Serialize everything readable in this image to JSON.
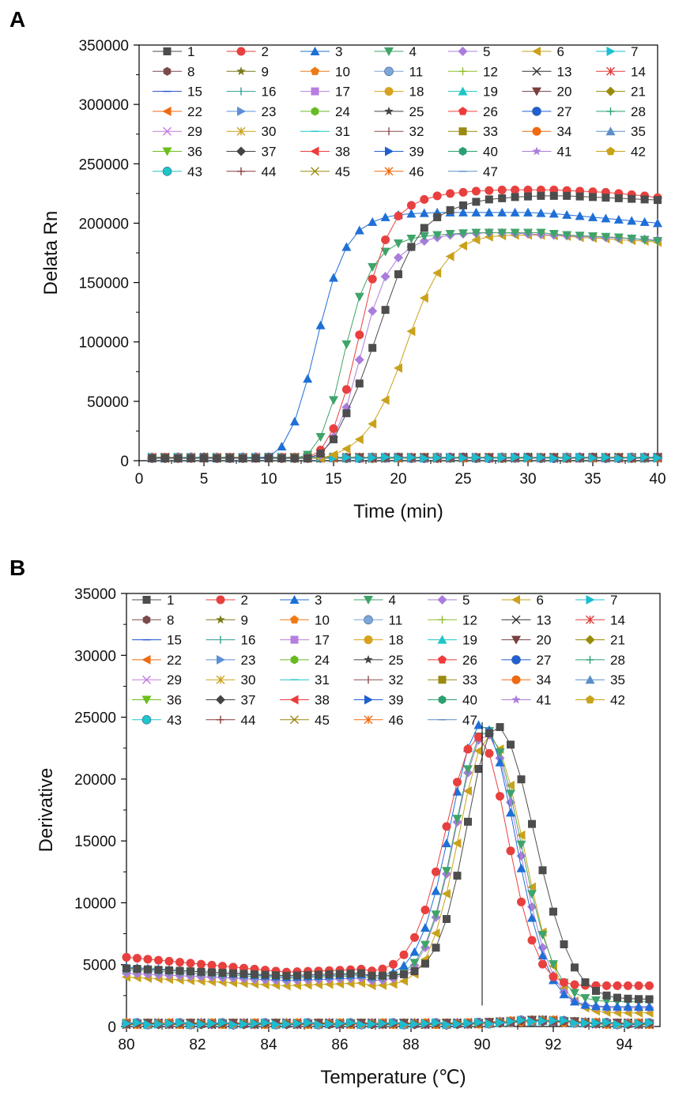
{
  "figure": {
    "panel_a_label": "A",
    "panel_b_label": "B"
  },
  "legend_labels": [
    "1",
    "2",
    "3",
    "4",
    "5",
    "6",
    "7",
    "8",
    "9",
    "10",
    "11",
    "12",
    "13",
    "14",
    "15",
    "16",
    "17",
    "18",
    "19",
    "20",
    "21",
    "22",
    "23",
    "24",
    "25",
    "26",
    "27",
    "28",
    "29",
    "30",
    "31",
    "32",
    "33",
    "34",
    "35",
    "36",
    "37",
    "38",
    "39",
    "40",
    "41",
    "42",
    "43",
    "44",
    "45",
    "46",
    "47"
  ],
  "legend_markers": [
    {
      "shape": "square",
      "color": "#4d4d4d"
    },
    {
      "shape": "circle",
      "color": "#e8403f"
    },
    {
      "shape": "triangle-up",
      "color": "#1f6fd6"
    },
    {
      "shape": "triangle-down",
      "color": "#3fa46a"
    },
    {
      "shape": "diamond",
      "color": "#a97ddb"
    },
    {
      "shape": "triangle-left",
      "color": "#c9a21b"
    },
    {
      "shape": "triangle-right",
      "color": "#1dbdd0"
    },
    {
      "shape": "hexagon",
      "color": "#7b4a4a"
    },
    {
      "shape": "star",
      "color": "#7a7a1c"
    },
    {
      "shape": "pentagon",
      "color": "#f07b16"
    },
    {
      "shape": "sphere",
      "color": "#7ea6d6"
    },
    {
      "shape": "plus",
      "color": "#8fbf2f"
    },
    {
      "shape": "x",
      "color": "#333333"
    },
    {
      "shape": "asterisk",
      "color": "#e23a3a"
    },
    {
      "shape": "dash",
      "color": "#1f4fd0"
    },
    {
      "shape": "vbar",
      "color": "#2aa090"
    },
    {
      "shape": "square",
      "color": "#b77ee0"
    },
    {
      "shape": "circle",
      "color": "#d6a21e"
    },
    {
      "shape": "triangle-up",
      "color": "#1ec6c6"
    },
    {
      "shape": "triangle-down",
      "color": "#7a4040"
    },
    {
      "shape": "diamond",
      "color": "#9a8a0a"
    },
    {
      "shape": "triangle-left",
      "color": "#f06a10"
    },
    {
      "shape": "triangle-right",
      "color": "#5b8fd6"
    },
    {
      "shape": "hexagon",
      "color": "#66bb22"
    },
    {
      "shape": "star",
      "color": "#444444"
    },
    {
      "shape": "pentagon",
      "color": "#ee3b3b"
    },
    {
      "shape": "sphere",
      "color": "#1f5fd0"
    },
    {
      "shape": "plus",
      "color": "#2aa070"
    },
    {
      "shape": "x",
      "color": "#c27ae0"
    },
    {
      "shape": "asterisk",
      "color": "#c9a21b"
    },
    {
      "shape": "dash",
      "color": "#1ec6c6"
    },
    {
      "shape": "vbar",
      "color": "#8a4a4a"
    },
    {
      "shape": "square",
      "color": "#9a8a10"
    },
    {
      "shape": "circle",
      "color": "#f06a10"
    },
    {
      "shape": "triangle-up",
      "color": "#5b8fc6"
    },
    {
      "shape": "triangle-down",
      "color": "#6abf1a"
    },
    {
      "shape": "diamond",
      "color": "#444444"
    },
    {
      "shape": "triangle-left",
      "color": "#ee3b3b"
    },
    {
      "shape": "triangle-right",
      "color": "#1f5fd0"
    },
    {
      "shape": "hexagon",
      "color": "#2aa070"
    },
    {
      "shape": "star",
      "color": "#a97ddb"
    },
    {
      "shape": "pentagon",
      "color": "#c9a21b"
    },
    {
      "shape": "sphere",
      "color": "#1ec6c6"
    },
    {
      "shape": "plus",
      "color": "#8a3a3a"
    },
    {
      "shape": "x",
      "color": "#9a8a10"
    },
    {
      "shape": "asterisk",
      "color": "#f06a10"
    },
    {
      "shape": "dash",
      "color": "#5b8fc6"
    }
  ],
  "chart_data": [
    {
      "type": "line",
      "panel": "A",
      "title": "",
      "xlabel": "Time (min)",
      "ylabel": "Delata Rn",
      "xlim": [
        0,
        40
      ],
      "ylim": [
        0,
        350000
      ],
      "xticks": [
        0,
        5,
        10,
        15,
        20,
        25,
        30,
        35,
        40
      ],
      "yticks": [
        0,
        50000,
        100000,
        150000,
        200000,
        250000,
        300000,
        350000
      ],
      "x": [
        1,
        2,
        3,
        4,
        5,
        6,
        7,
        8,
        9,
        10,
        11,
        12,
        13,
        14,
        15,
        16,
        17,
        18,
        19,
        20,
        21,
        22,
        23,
        24,
        25,
        26,
        27,
        28,
        29,
        30,
        31,
        32,
        33,
        34,
        35,
        36,
        37,
        38,
        39,
        40
      ],
      "series": [
        {
          "name": "1",
          "values": [
            2000,
            2000,
            2000,
            2000,
            2000,
            2000,
            2000,
            2000,
            2000,
            2000,
            2000,
            2000,
            2000,
            6000,
            18000,
            40000,
            65000,
            95000,
            127000,
            157000,
            180000,
            196000,
            205000,
            211000,
            215000,
            218000,
            220000,
            221000,
            222000,
            222500,
            223000,
            223000,
            223000,
            222500,
            222000,
            221500,
            221000,
            220500,
            220000,
            219500
          ]
        },
        {
          "name": "2",
          "values": [
            2000,
            2000,
            2000,
            2000,
            2000,
            2000,
            2000,
            2000,
            2000,
            2000,
            2000,
            2000,
            2000,
            9000,
            27000,
            60000,
            106000,
            153000,
            186000,
            206000,
            215000,
            220000,
            223000,
            225000,
            226000,
            227000,
            227500,
            228000,
            228000,
            228000,
            228000,
            228000,
            227500,
            227000,
            226500,
            226000,
            225000,
            224000,
            223000,
            221500
          ]
        },
        {
          "name": "3",
          "values": [
            2000,
            2000,
            2000,
            2000,
            2000,
            2000,
            2000,
            2000,
            2000,
            3000,
            12000,
            33000,
            69000,
            114000,
            154000,
            180000,
            194000,
            201000,
            205000,
            207000,
            208000,
            208500,
            209000,
            209000,
            209000,
            209000,
            209000,
            209000,
            209000,
            209000,
            208500,
            208000,
            207000,
            206000,
            205000,
            204000,
            203000,
            202000,
            201000,
            200000
          ]
        },
        {
          "name": "4",
          "values": [
            2000,
            2000,
            2000,
            2000,
            2000,
            2000,
            2000,
            2000,
            2000,
            2000,
            2000,
            2000,
            5000,
            20000,
            51000,
            98000,
            138000,
            163000,
            176000,
            183000,
            187000,
            189000,
            190000,
            191000,
            191500,
            192000,
            192000,
            192000,
            192000,
            192000,
            192000,
            191000,
            190000,
            189500,
            189000,
            188500,
            188000,
            187000,
            186000,
            185000
          ]
        },
        {
          "name": "5",
          "values": [
            2000,
            2000,
            2000,
            2000,
            2000,
            2000,
            2000,
            2000,
            2000,
            2000,
            2000,
            2000,
            2000,
            5000,
            20000,
            45000,
            85000,
            126000,
            155000,
            171000,
            180000,
            185000,
            188000,
            190000,
            191000,
            191500,
            192000,
            192000,
            191500,
            191000,
            190500,
            190000,
            189500,
            189000,
            188500,
            188000,
            187500,
            187000,
            186500,
            186000
          ]
        },
        {
          "name": "6",
          "values": [
            2000,
            2000,
            2000,
            2000,
            2000,
            2000,
            2000,
            2000,
            2000,
            2000,
            2000,
            2000,
            2000,
            2000,
            5000,
            10000,
            18000,
            31000,
            51000,
            78000,
            109000,
            137000,
            158000,
            172000,
            181000,
            186000,
            188500,
            189500,
            190000,
            190000,
            190000,
            189500,
            189000,
            188000,
            187500,
            187000,
            186000,
            185500,
            185000,
            184000
          ]
        }
      ],
      "baseline_series_range": "7-47",
      "baseline_values": [
        2000,
        3000
      ]
    },
    {
      "type": "line",
      "panel": "B",
      "title": "",
      "xlabel": "Temperature (℃)",
      "ylabel": "Derivative",
      "xlim": [
        80,
        95
      ],
      "ylim": [
        0,
        35000
      ],
      "xticks": [
        80,
        82,
        84,
        86,
        88,
        90,
        92,
        94
      ],
      "yticks": [
        0,
        5000,
        10000,
        15000,
        20000,
        25000,
        30000,
        35000
      ],
      "vertical_line_at": 90.0,
      "x_range": [
        80.0,
        94.7
      ],
      "x_step": 0.3,
      "series": [
        {
          "name": "1",
          "baseline": 4700,
          "base_end": 4100,
          "peak_x": 90.4,
          "peak": 24300,
          "width_left": 1.15,
          "width_right": 1.5,
          "end": 2200
        },
        {
          "name": "2",
          "baseline": 5600,
          "base_end": 4400,
          "peak_x": 89.9,
          "peak": 23400,
          "width_left": 1.3,
          "width_right": 1.15,
          "end": 3300
        },
        {
          "name": "3",
          "baseline": 4800,
          "base_end": 4000,
          "peak_x": 90.0,
          "peak": 24500,
          "width_left": 1.25,
          "width_right": 1.3,
          "end": 1600
        },
        {
          "name": "4",
          "baseline": 4600,
          "base_end": 3900,
          "peak_x": 90.1,
          "peak": 24000,
          "width_left": 1.2,
          "width_right": 1.35,
          "end": 2000
        },
        {
          "name": "5",
          "baseline": 4300,
          "base_end": 3700,
          "peak_x": 90.1,
          "peak": 23700,
          "width_left": 1.2,
          "width_right": 1.3,
          "end": 1500
        },
        {
          "name": "6",
          "baseline": 4000,
          "base_end": 3300,
          "peak_x": 90.2,
          "peak": 23500,
          "width_left": 1.2,
          "width_right": 1.35,
          "end": 1100
        }
      ],
      "baseline_series_range": "7-47",
      "baseline_values": [
        150,
        400
      ]
    }
  ]
}
